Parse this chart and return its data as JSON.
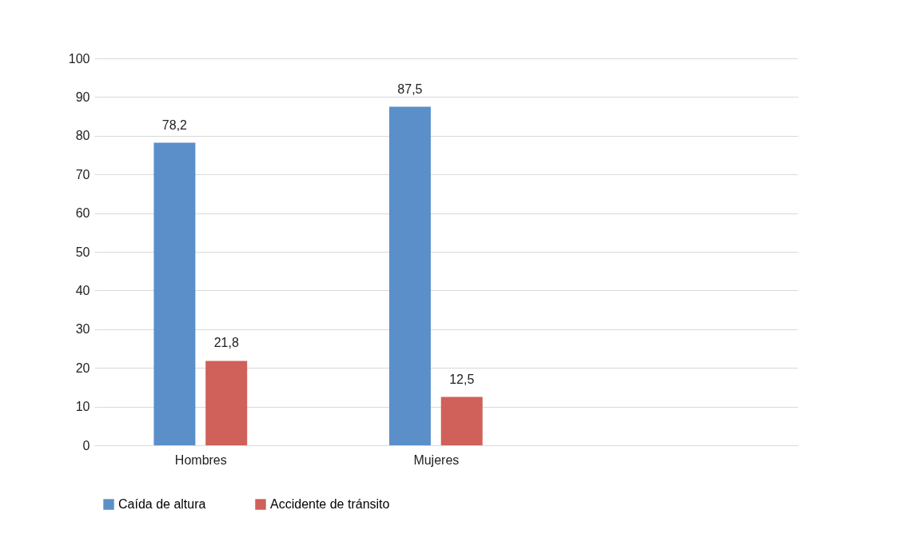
{
  "chart_data": {
    "type": "bar",
    "categories": [
      "Hombres",
      "Mujeres",
      null
    ],
    "series": [
      {
        "name": "Caída de altura",
        "color": "#5b8fc9",
        "values": [
          78.2,
          87.5,
          null
        ],
        "value_labels": [
          "78,2",
          "87,5",
          null
        ]
      },
      {
        "name": "Accidente de tránsito",
        "color": "#cf605a",
        "values": [
          21.8,
          12.5,
          null
        ],
        "value_labels": [
          "21,8",
          "12,5",
          null
        ]
      }
    ],
    "ylim": [
      0,
      100
    ],
    "yticks": [
      0,
      10,
      20,
      30,
      40,
      50,
      60,
      70,
      80,
      90,
      100
    ],
    "grid": "y",
    "legend": "bottom"
  }
}
